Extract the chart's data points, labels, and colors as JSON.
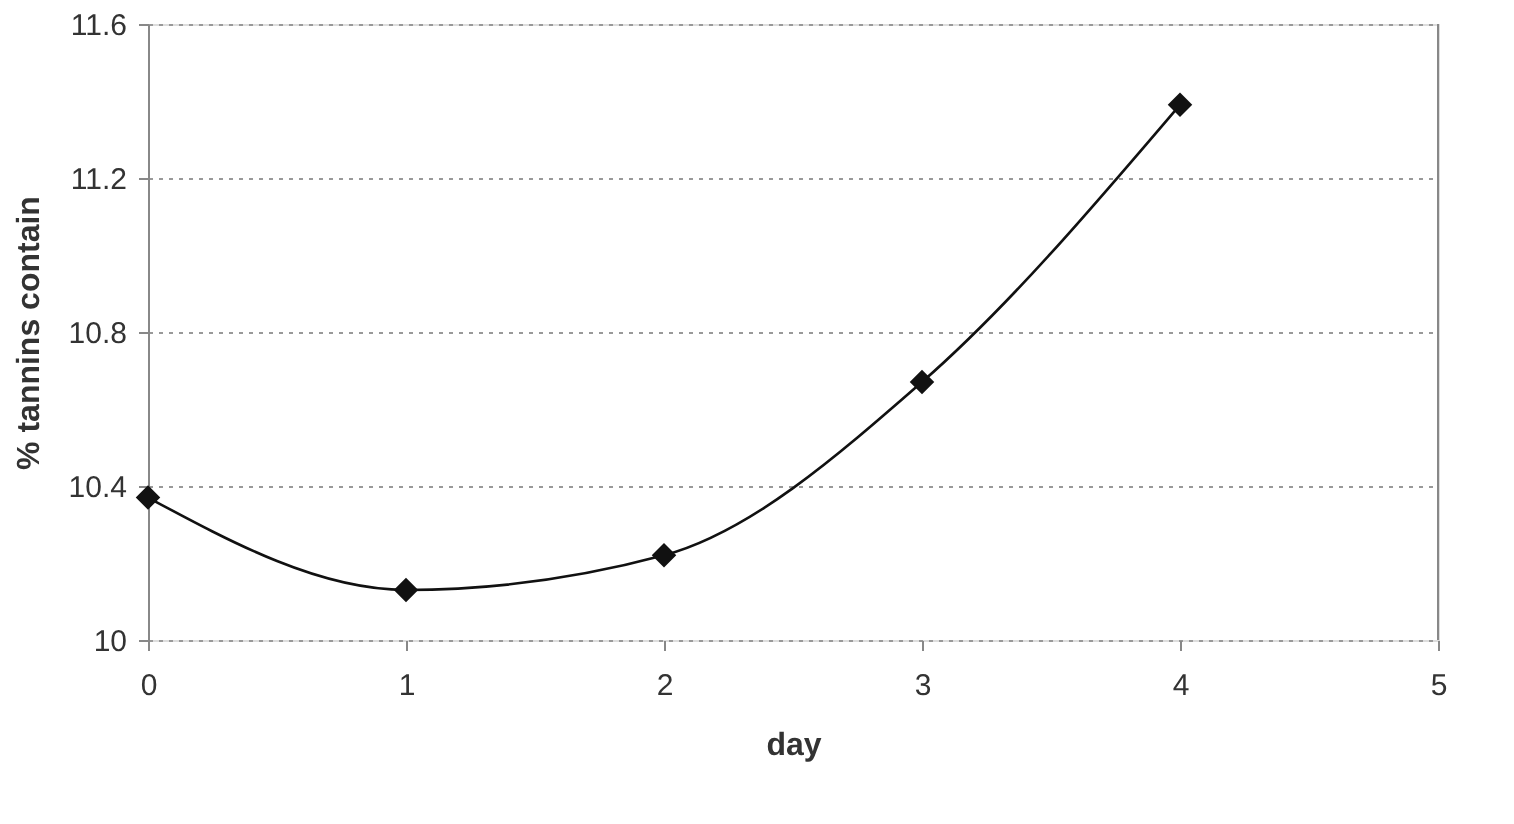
{
  "chart_data": {
    "type": "line",
    "xlabel": "day",
    "ylabel": "% tannins contain",
    "x": [
      0,
      1,
      2,
      3,
      4
    ],
    "series": [
      {
        "color": "#111111",
        "values": [
          10.37,
          10.13,
          10.22,
          10.67,
          11.39
        ]
      }
    ],
    "xlim": [
      0,
      5
    ],
    "xticks": [
      0,
      1,
      2,
      3,
      4,
      5
    ],
    "ylim": [
      10,
      11.6
    ],
    "yticks": [
      10,
      10.4,
      10.8,
      11.2,
      11.6
    ],
    "grid": "y",
    "marker": "diamond",
    "line_style": "solid"
  }
}
